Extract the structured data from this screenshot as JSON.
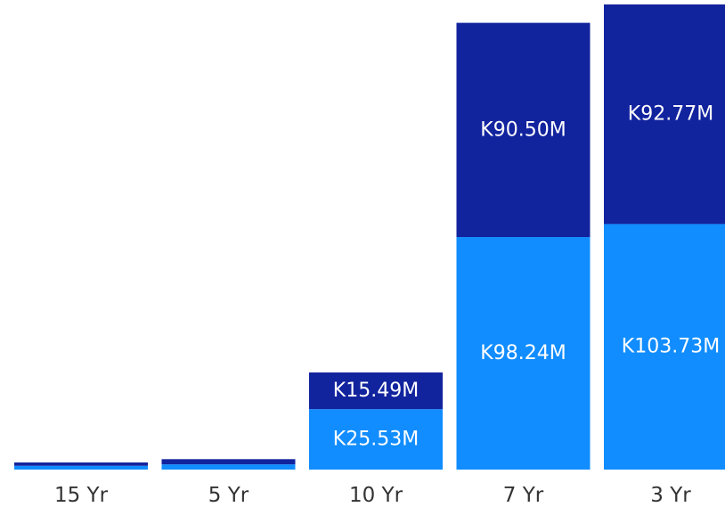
{
  "chart_data": {
    "type": "bar",
    "stacked": true,
    "categories": [
      "15 Yr",
      "5 Yr",
      "10 Yr",
      "7 Yr",
      "3 Yr"
    ],
    "series": [
      {
        "color": "#118dff",
        "values": [
          1.6,
          2.2,
          25.53,
          98.24,
          103.73
        ],
        "labels": [
          "",
          "",
          "K25.53M",
          "K98.24M",
          "K103.73M"
        ]
      },
      {
        "color": "#12239e",
        "values": [
          1.4,
          2.2,
          15.49,
          90.5,
          92.77
        ],
        "labels": [
          "",
          "",
          "K15.49M",
          "K90.50M",
          "K92.77M"
        ]
      }
    ],
    "title": "",
    "xlabel": "",
    "ylabel": "",
    "ylim": [
      0,
      196.5
    ],
    "grid": false,
    "legend": "none"
  }
}
